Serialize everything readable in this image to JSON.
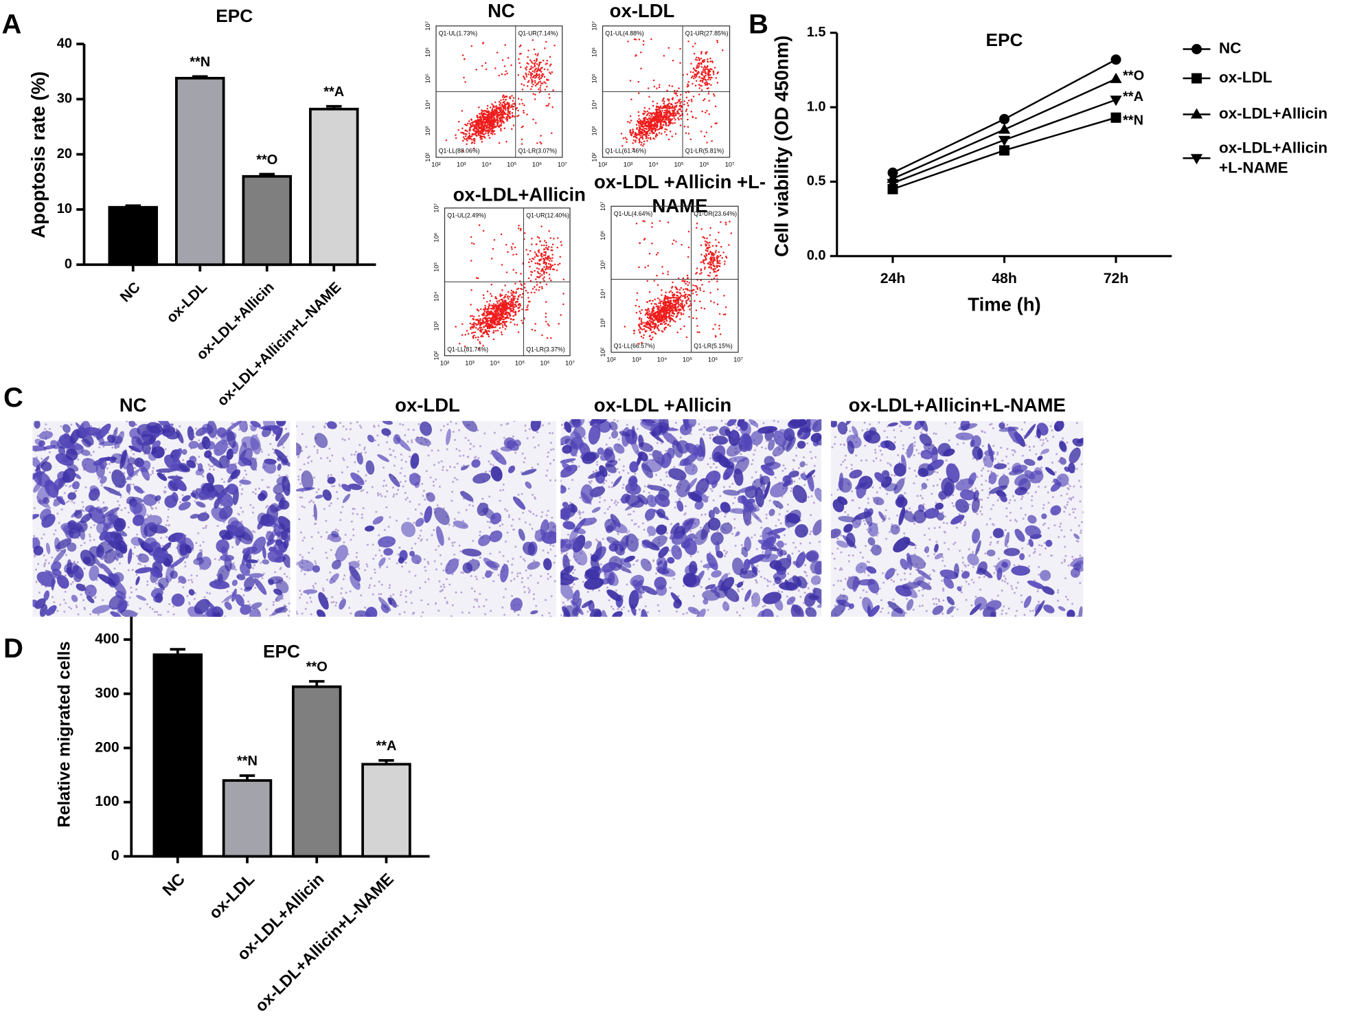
{
  "panel_labels": [
    "A",
    "B",
    "C",
    "D"
  ],
  "chart_data": [
    {
      "type": "bar",
      "title": "EPC",
      "y_label": "Apoptosis rate (%)",
      "categories": [
        "NC",
        "ox-LDL",
        "ox-LDL+Allicin",
        "ox-LDL+Allicin+L-NAME"
      ],
      "values": [
        10.4,
        33.8,
        16.0,
        28.2
      ],
      "errors": [
        0.3,
        0.3,
        0.4,
        0.5
      ],
      "annotations": [
        null,
        "**N",
        "**O",
        "**A"
      ],
      "colors": [
        "#000000",
        "#a3a3ab",
        "#7f7f7f",
        "#d4d4d4"
      ],
      "ylim": [
        0,
        40
      ],
      "yticks": [
        0,
        10,
        20,
        30,
        40
      ]
    },
    {
      "type": "line",
      "title": "EPC",
      "x_label": "Time (h)",
      "y_label": "Cell viability (OD 450nm)",
      "categories": [
        "24h",
        "48h",
        "72h"
      ],
      "series": [
        {
          "name": "NC",
          "color": "#000000",
          "marker": "circle",
          "values": [
            0.56,
            0.92,
            1.32
          ]
        },
        {
          "name": "ox-LDL",
          "color": "#000000",
          "marker": "square",
          "values": [
            0.45,
            0.71,
            0.93
          ],
          "annotation": "**N"
        },
        {
          "name": "ox-LDL+Allicin",
          "color": "#000000",
          "marker": "triangle-up",
          "values": [
            0.52,
            0.85,
            1.19
          ],
          "annotation": "**O"
        },
        {
          "name": "ox-LDL+Allicin+L-NAME",
          "color": "#000000",
          "marker": "triangle-down",
          "values": [
            0.49,
            0.78,
            1.05
          ],
          "annotation": "**A"
        }
      ],
      "ylim": [
        0,
        1.5
      ],
      "yticks": [
        {
          "value": 0,
          "label": "0.0"
        },
        0.5,
        {
          "value": 1,
          "label": "1.0"
        },
        1.5
      ],
      "legend": "right"
    },
    {
      "type": "bar",
      "title": "EPC",
      "y_label": "Relative migrated cells",
      "categories": [
        "NC",
        "ox-LDL",
        "ox-LDL+Allicin",
        "ox-LDL+Allicin+L-NAME"
      ],
      "values": [
        372,
        140,
        313,
        170
      ],
      "errors": [
        10,
        9,
        10,
        7
      ],
      "annotations": [
        null,
        "**N",
        "**O",
        "**A"
      ],
      "colors": [
        "#000000",
        "#a3a3ab",
        "#7f7f7f",
        "#d4d4d4"
      ],
      "ylim": [
        0,
        450
      ],
      "yticks": [
        0,
        100,
        200,
        300,
        400
      ]
    }
  ],
  "flow_plots": {
    "axis_ticks": [
      "10²",
      "10³",
      "10⁴",
      "10⁵",
      "10⁶",
      "10⁷"
    ],
    "panels": [
      {
        "title": "NC",
        "quadrants": {
          "UL": "Q1-UL(1.73%)",
          "UR": "Q1-UR(7.14%)",
          "LL": "Q1-LL(88.06%)",
          "LR": "Q1-LR(3.07%)"
        }
      },
      {
        "title": "ox-LDL",
        "quadrants": {
          "UL": "Q1-UL(4.88%)",
          "UR": "Q1-UR(27.85%)",
          "LL": "Q1-LL(61.46%)",
          "LR": "Q1-LR(5.81%)"
        }
      },
      {
        "title": "ox-LDL+Allicin",
        "quadrants": {
          "UL": "Q1-UL(2.49%)",
          "UR": "Q1-UR(12.40%)",
          "LL": "Q1-LL(81.74%)",
          "LR": "Q1-LR(3.37%)"
        }
      },
      {
        "title": "ox-LDL +Allicin +L-NAME",
        "quadrants": {
          "UL": "Q1-UL(4.64%)",
          "UR": "Q1-UR(23.64%)",
          "LL": "Q1-LL(66.57%)",
          "LR": "Q1-LR(5.15%)"
        }
      }
    ]
  },
  "migration_images": {
    "panels": [
      {
        "title": "NC"
      },
      {
        "title": "ox-LDL"
      },
      {
        "title": "ox-LDL +Allicin"
      },
      {
        "title": "ox-LDL+Allicin+L-NAME"
      }
    ]
  }
}
